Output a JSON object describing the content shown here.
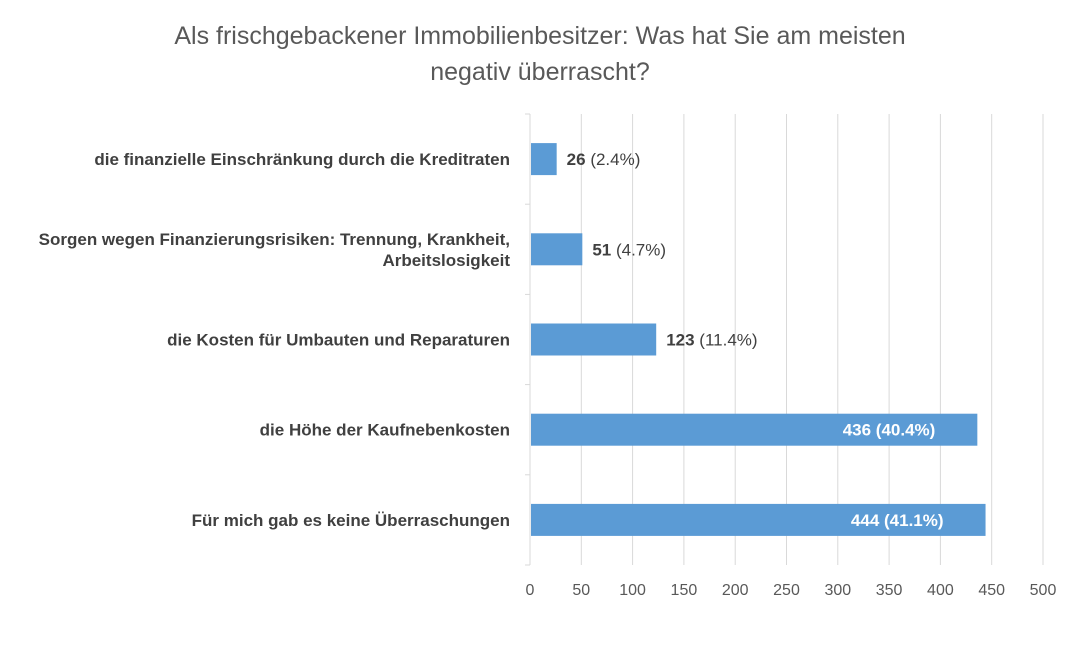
{
  "chart_data": {
    "type": "bar",
    "orientation": "horizontal",
    "title": "Als frischgebackener Immobilienbesitzer:  Was hat Sie am meisten negativ überrascht?",
    "title_lines": [
      "Als frischgebackener Immobilienbesitzer:  Was hat Sie am meisten",
      "negativ überrascht?"
    ],
    "categories": [
      [
        "die finanzielle Einschränkung durch die Kreditraten"
      ],
      [
        "Sorgen wegen Finanzierungsrisiken: Trennung, Krankheit,",
        "Arbeitslosigkeit"
      ],
      [
        "die Kosten für Umbauten und Reparaturen"
      ],
      [
        "die Höhe der Kaufnebenkosten"
      ],
      [
        "Für mich gab es keine Überraschungen"
      ]
    ],
    "values": [
      26,
      51,
      123,
      436,
      444
    ],
    "percent_labels": [
      "(2.4%)",
      "(4.7%)",
      "(11.4%)",
      "(40.4%)",
      "(41.1%)"
    ],
    "label_position": [
      "outside",
      "outside",
      "outside",
      "inside",
      "inside"
    ],
    "xlim": [
      0,
      500
    ],
    "x_ticks": [
      0,
      50,
      100,
      150,
      200,
      250,
      300,
      350,
      400,
      450,
      500
    ],
    "grid": "vertical",
    "legend": "none",
    "bar_color": "#5b9bd5",
    "grid_color": "#d9d9d9",
    "axis_color": "#d9d9d9"
  }
}
